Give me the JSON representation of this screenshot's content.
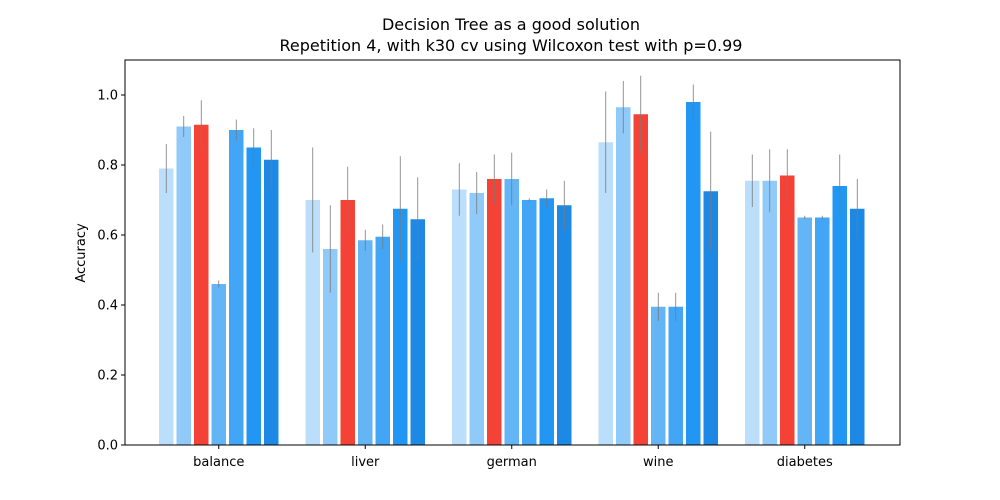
{
  "chart_data": {
    "type": "bar",
    "title": "Decision Tree as a good solution",
    "subtitle": "Repetition 4, with k30 cv using Wilcoxon test with p=0.99",
    "xlabel": "",
    "ylabel": "Accuracy",
    "ylim": [
      0,
      1.1
    ],
    "yticks": [
      0.0,
      0.2,
      0.4,
      0.6,
      0.8,
      1.0
    ],
    "ytick_labels": [
      "0.0",
      "0.2",
      "0.4",
      "0.6",
      "0.8",
      "1.0"
    ],
    "grid": false,
    "legend": "none",
    "categories": [
      "balance",
      "liver",
      "german",
      "wine",
      "diabetes"
    ],
    "series": [
      {
        "color": "#bbdefb",
        "values": [
          0.79,
          0.7,
          0.73,
          0.865,
          0.755
        ],
        "errors": [
          0.07,
          0.15,
          0.075,
          0.145,
          0.075
        ]
      },
      {
        "color": "#90caf9",
        "values": [
          0.91,
          0.56,
          0.72,
          0.965,
          0.755
        ],
        "errors": [
          0.03,
          0.125,
          0.06,
          0.075,
          0.09
        ]
      },
      {
        "color": "#f44336",
        "values": [
          0.915,
          0.7,
          0.76,
          0.945,
          0.77
        ],
        "errors": [
          0.07,
          0.095,
          0.07,
          0.11,
          0.075
        ]
      },
      {
        "color": "#64b5f6",
        "values": [
          0.46,
          0.585,
          0.76,
          0.395,
          0.65
        ],
        "errors": [
          0.01,
          0.03,
          0.075,
          0.04,
          0.005
        ]
      },
      {
        "color": "#42a5f5",
        "values": [
          0.9,
          0.595,
          0.7,
          0.395,
          0.65
        ],
        "errors": [
          0.03,
          0.035,
          0.005,
          0.04,
          0.005
        ]
      },
      {
        "color": "#2196f3",
        "values": [
          0.85,
          0.675,
          0.705,
          0.98,
          0.74
        ],
        "errors": [
          0.055,
          0.15,
          0.025,
          0.05,
          0.09
        ]
      },
      {
        "color": "#1e88e5",
        "values": [
          0.815,
          0.645,
          0.685,
          0.725,
          0.675
        ],
        "errors": [
          0.085,
          0.12,
          0.07,
          0.17,
          0.085
        ]
      }
    ]
  }
}
